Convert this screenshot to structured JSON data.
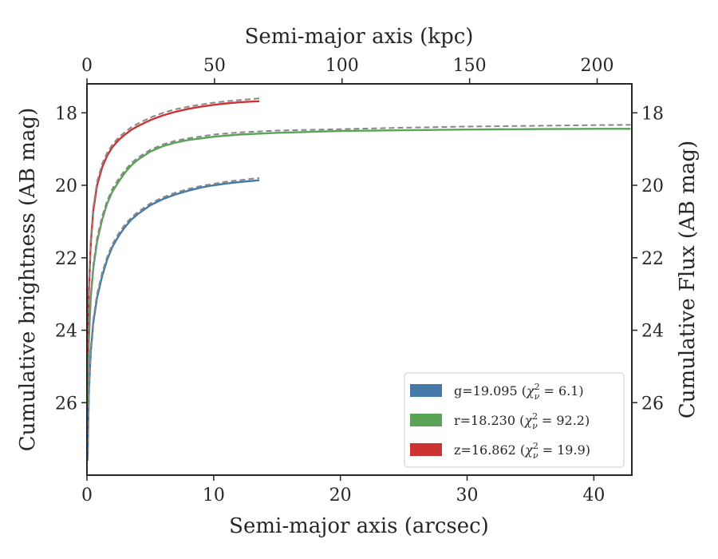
{
  "chart_data": {
    "type": "line",
    "xlabel": "Semi-major axis (arcsec)",
    "x2label": "Semi-major axis (kpc)",
    "ylabel": "Cumulative brightness (AB mag)",
    "y2label": "Cumulative Flux (AB mag)",
    "xlim": [
      0,
      43
    ],
    "x2lim": [
      0,
      213.6
    ],
    "ylim": [
      28,
      17.2
    ],
    "y_inverted": true,
    "xticks": [
      "0",
      "10",
      "20",
      "30",
      "40"
    ],
    "x2ticks": [
      "0",
      "50",
      "100",
      "150",
      "200"
    ],
    "yticks": [
      "18",
      "20",
      "22",
      "24",
      "26"
    ],
    "legend_position": "lower-right",
    "series": [
      {
        "name": "g=19.095 (χ²ν = 6.1)",
        "legend": {
          "prefix": "g=19.095 (",
          "chi": "χ",
          "sup": "2",
          "sub": "ν",
          "suffix": " = 6.1)"
        },
        "color": "#4479a8",
        "x": [
          0.05,
          0.15,
          0.3,
          0.5,
          0.8,
          1.2,
          1.6,
          2.0,
          2.5,
          3.0,
          3.5,
          4.0,
          5.0,
          6.0,
          7.0,
          8.0,
          9.0,
          10.0,
          11.0,
          12.0,
          13.0,
          13.6
        ],
        "y": [
          27.6,
          25.7,
          24.6,
          23.8,
          23.1,
          22.5,
          22.05,
          21.7,
          21.4,
          21.15,
          20.95,
          20.8,
          20.55,
          20.38,
          20.25,
          20.15,
          20.06,
          20.0,
          19.95,
          19.91,
          19.88,
          19.86
        ],
        "model_y": [
          27.6,
          25.6,
          24.5,
          23.7,
          23.0,
          22.4,
          21.97,
          21.63,
          21.33,
          21.08,
          20.89,
          20.74,
          20.5,
          20.33,
          20.2,
          20.1,
          20.02,
          19.96,
          19.9,
          19.86,
          19.82,
          19.8
        ]
      },
      {
        "name": "r=18.230 (χ²ν = 92.2)",
        "legend": {
          "prefix": "r=18.230 (",
          "chi": "χ",
          "sup": "2",
          "sub": "ν",
          "suffix": " = 92.2)"
        },
        "color": "#5aa357",
        "x": [
          0.05,
          0.15,
          0.3,
          0.5,
          0.8,
          1.2,
          1.6,
          2.0,
          2.5,
          3.0,
          3.5,
          4.0,
          5.0,
          6.0,
          7.0,
          8.0,
          10.0,
          12.0,
          15.0,
          20.0,
          25.0,
          30.0,
          35.0,
          40.0,
          42.9
        ],
        "y": [
          26.0,
          24.3,
          23.1,
          22.3,
          21.55,
          20.95,
          20.5,
          20.18,
          19.9,
          19.65,
          19.45,
          19.3,
          19.07,
          18.92,
          18.82,
          18.75,
          18.66,
          18.6,
          18.55,
          18.5,
          18.48,
          18.46,
          18.45,
          18.44,
          18.44
        ],
        "model_y": [
          25.9,
          24.2,
          23.0,
          22.2,
          21.45,
          20.85,
          20.42,
          20.1,
          19.82,
          19.58,
          19.39,
          19.24,
          19.02,
          18.87,
          18.77,
          18.7,
          18.6,
          18.54,
          18.49,
          18.45,
          18.41,
          18.38,
          18.36,
          18.34,
          18.33
        ]
      },
      {
        "name": "z=16.862 (χ²ν = 19.9)",
        "legend": {
          "prefix": "z=16.862 (",
          "chi": "χ",
          "sup": "2",
          "sub": "ν",
          "suffix": " = 19.9)"
        },
        "color": "#cc3333",
        "x": [
          0.05,
          0.15,
          0.3,
          0.5,
          0.8,
          1.2,
          1.6,
          2.0,
          2.5,
          3.0,
          3.5,
          4.0,
          5.0,
          6.0,
          7.0,
          8.0,
          9.0,
          10.0,
          11.0,
          12.0,
          13.0,
          13.6
        ],
        "y": [
          24.6,
          22.9,
          21.6,
          20.7,
          20.0,
          19.5,
          19.18,
          18.95,
          18.75,
          18.6,
          18.47,
          18.37,
          18.2,
          18.07,
          17.97,
          17.89,
          17.83,
          17.78,
          17.74,
          17.71,
          17.69,
          17.68
        ],
        "model_y": [
          24.5,
          22.8,
          21.5,
          20.6,
          19.9,
          19.4,
          19.1,
          18.88,
          18.68,
          18.53,
          18.4,
          18.3,
          18.13,
          18.0,
          17.9,
          17.83,
          17.77,
          17.72,
          17.68,
          17.65,
          17.62,
          17.6
        ]
      }
    ],
    "model_line": {
      "color": "#888888",
      "style": "dashed"
    }
  }
}
